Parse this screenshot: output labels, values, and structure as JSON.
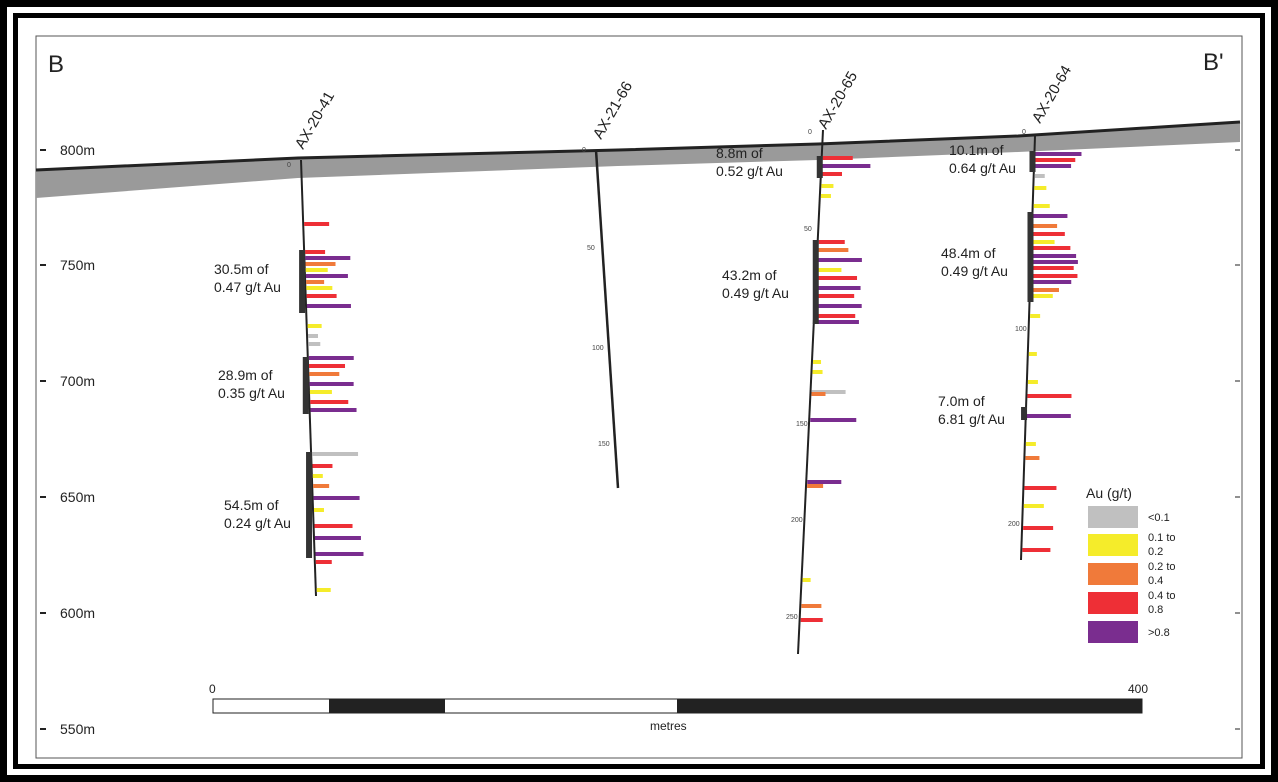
{
  "section": {
    "left_label": "B",
    "right_label": "B'"
  },
  "elevation_labels": [
    "800m",
    "750m",
    "700m",
    "650m",
    "600m",
    "550m"
  ],
  "holes": [
    {
      "id": "AX-20-41",
      "depth_labels": [
        "0"
      ],
      "intercepts": [
        {
          "line1": "30.5m of",
          "line2": "0.47 g/t Au"
        },
        {
          "line1": "28.9m of",
          "line2": "0.35 g/t Au"
        },
        {
          "line1": "54.5m of",
          "line2": "0.24 g/t Au"
        }
      ]
    },
    {
      "id": "AX-21-66",
      "depth_labels": [
        "0",
        "50",
        "100",
        "150"
      ],
      "intercepts": []
    },
    {
      "id": "AX-20-65",
      "depth_labels": [
        "0",
        "50",
        "150",
        "200",
        "250"
      ],
      "intercepts": [
        {
          "line1": "8.8m of",
          "line2": "0.52 g/t Au"
        },
        {
          "line1": "43.2m of",
          "line2": "0.49 g/t Au"
        }
      ]
    },
    {
      "id": "AX-20-64",
      "depth_labels": [
        "0",
        "100",
        "200"
      ],
      "intercepts": [
        {
          "line1": "10.1m of",
          "line2": "0.64 g/t Au"
        },
        {
          "line1": "48.4m of",
          "line2": "0.49 g/t Au"
        },
        {
          "line1": "7.0m of",
          "line2": "6.81 g/t Au"
        }
      ]
    }
  ],
  "legend": {
    "title": "Au (g/t)",
    "items": [
      {
        "line1": "<0.1",
        "line2": "",
        "color": "#c0c0c0"
      },
      {
        "line1": "0.1 to",
        "line2": "0.2",
        "color": "#f5ec2a"
      },
      {
        "line1": "0.2 to",
        "line2": "0.4",
        "color": "#f07a3a"
      },
      {
        "line1": "0.4 to",
        "line2": "0.8",
        "color": "#ee2f36"
      },
      {
        "line1": ">0.8",
        "line2": "",
        "color": "#7a2d8f"
      }
    ]
  },
  "scale_bar": {
    "start_label": "0",
    "end_label": "400",
    "unit_label": "metres"
  },
  "colors": {
    "overburden": "#9a9a9a",
    "drill_trace": "#222222",
    "intercept_bar": "#333333"
  }
}
